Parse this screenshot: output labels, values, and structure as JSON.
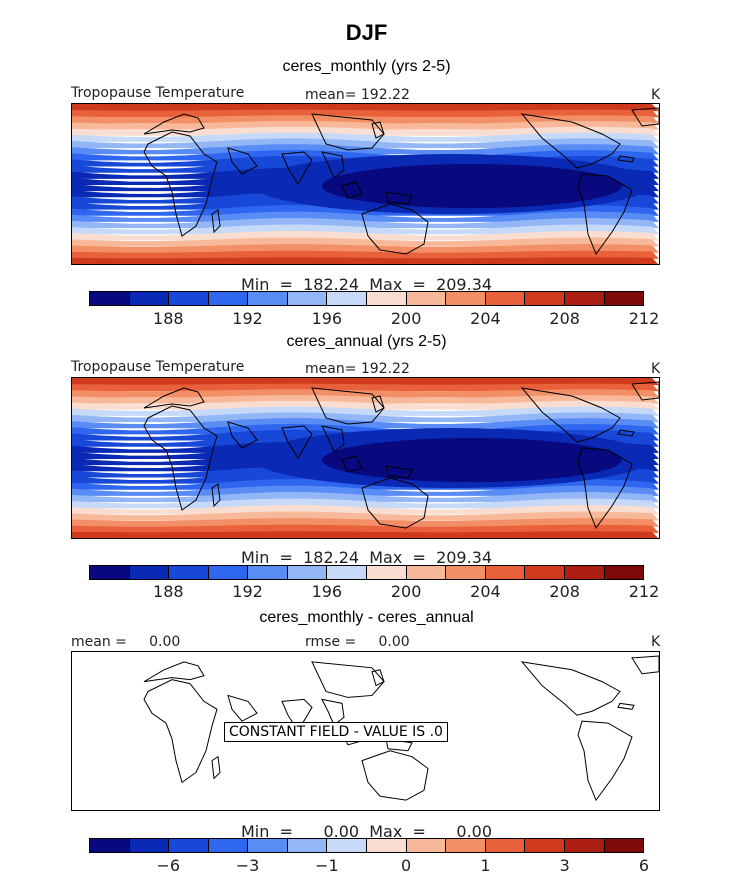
{
  "page": {
    "title": "DJF"
  },
  "colors": {
    "palette": [
      "#08087f",
      "#0a2ab5",
      "#1848d8",
      "#2e66ef",
      "#5a8cf5",
      "#93b6f7",
      "#c6daf8",
      "#f8ddd0",
      "#f7b99a",
      "#f28f66",
      "#e8613a",
      "#cf3a1e",
      "#ab1f10",
      "#7e0a08"
    ]
  },
  "panels": [
    {
      "subtitle": "ceres_monthly (yrs 2-5)",
      "field_label": "Tropopause Temperature",
      "mean_text": "mean= 192.22",
      "units": "K",
      "minmax_text": "Min  =  182.24  Max  =  209.34",
      "tick_labels": [
        "188",
        "192",
        "196",
        "200",
        "204",
        "208",
        "212"
      ]
    },
    {
      "subtitle": "ceres_annual (yrs 2-5)",
      "field_label": "Tropopause Temperature",
      "mean_text": "mean= 192.22",
      "units": "K",
      "minmax_text": "Min  =  182.24  Max  =  209.34",
      "tick_labels": [
        "188",
        "192",
        "196",
        "200",
        "204",
        "208",
        "212"
      ]
    },
    {
      "subtitle": "ceres_monthly - ceres_annual",
      "mean_text": "mean =     0.00",
      "rmse_text": "rmse =     0.00",
      "units": "K",
      "constant_text": "CONSTANT FIELD - VALUE IS .0",
      "minmax_text": "Min  =      0.00  Max  =      0.00",
      "tick_labels": [
        "−6",
        "−3",
        "−1",
        "0",
        "1",
        "3",
        "6"
      ]
    }
  ]
}
